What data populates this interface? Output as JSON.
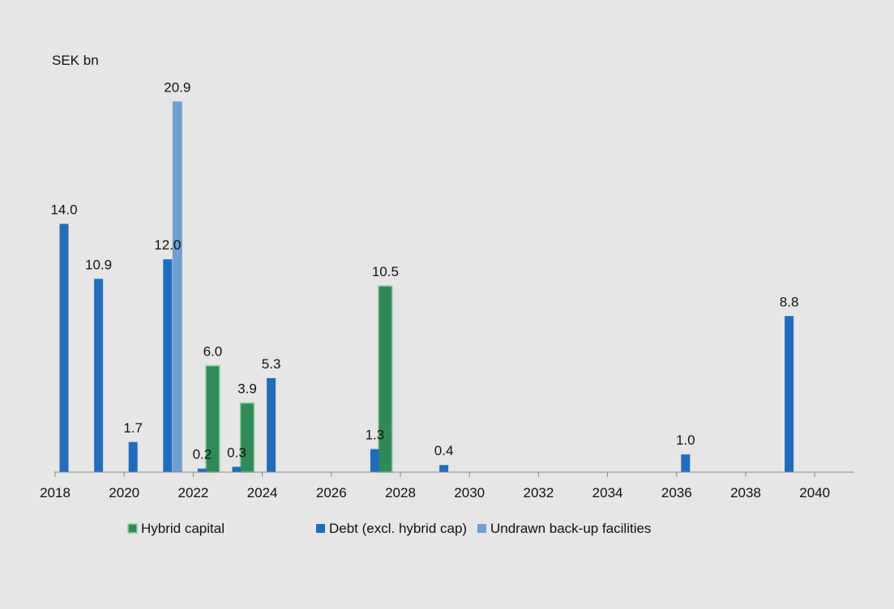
{
  "chart_data": {
    "type": "bar",
    "ylabel": "SEK bn",
    "xlim": [
      2017.6,
      2040.5
    ],
    "ylim": [
      0,
      22
    ],
    "x_ticks": [
      "2018",
      "2020",
      "2022",
      "2024",
      "2026",
      "2028",
      "2030",
      "2032",
      "2034",
      "2036",
      "2038",
      "2040"
    ],
    "legend_position": "bottom",
    "grid": false,
    "series": [
      {
        "name": "Hybrid capital",
        "color": "#2e8b57",
        "border": "#8fd19e",
        "points": [
          {
            "x": 2022,
            "value": 6.0,
            "label": "6.0"
          },
          {
            "x": 2023,
            "value": 3.9,
            "label": "3.9"
          },
          {
            "x": 2027,
            "value": 10.5,
            "label": "10.5"
          }
        ]
      },
      {
        "name": "Debt (excl. hybrid cap)",
        "color": "#1f6dbf",
        "points": [
          {
            "x": 2018,
            "value": 14.0,
            "label": "14.0"
          },
          {
            "x": 2019,
            "value": 10.9,
            "label": "10.9"
          },
          {
            "x": 2020,
            "value": 1.7,
            "label": "1.7"
          },
          {
            "x": 2021,
            "value": 12.0,
            "label": "12.0"
          },
          {
            "x": 2022,
            "value": 0.2,
            "label": "0.2"
          },
          {
            "x": 2023,
            "value": 0.3,
            "label": "0.3"
          },
          {
            "x": 2024,
            "value": 5.3,
            "label": "5.3"
          },
          {
            "x": 2027,
            "value": 1.3,
            "label": "1.3"
          },
          {
            "x": 2029,
            "value": 0.4,
            "label": "0.4"
          },
          {
            "x": 2036,
            "value": 1.0,
            "label": "1.0"
          },
          {
            "x": 2039,
            "value": 8.8,
            "label": "8.8"
          }
        ]
      },
      {
        "name": "Undrawn back-up facilities",
        "color": "#6f9fd0",
        "points": [
          {
            "x": 2021,
            "value": 20.9,
            "label": "20.9"
          }
        ]
      }
    ]
  }
}
